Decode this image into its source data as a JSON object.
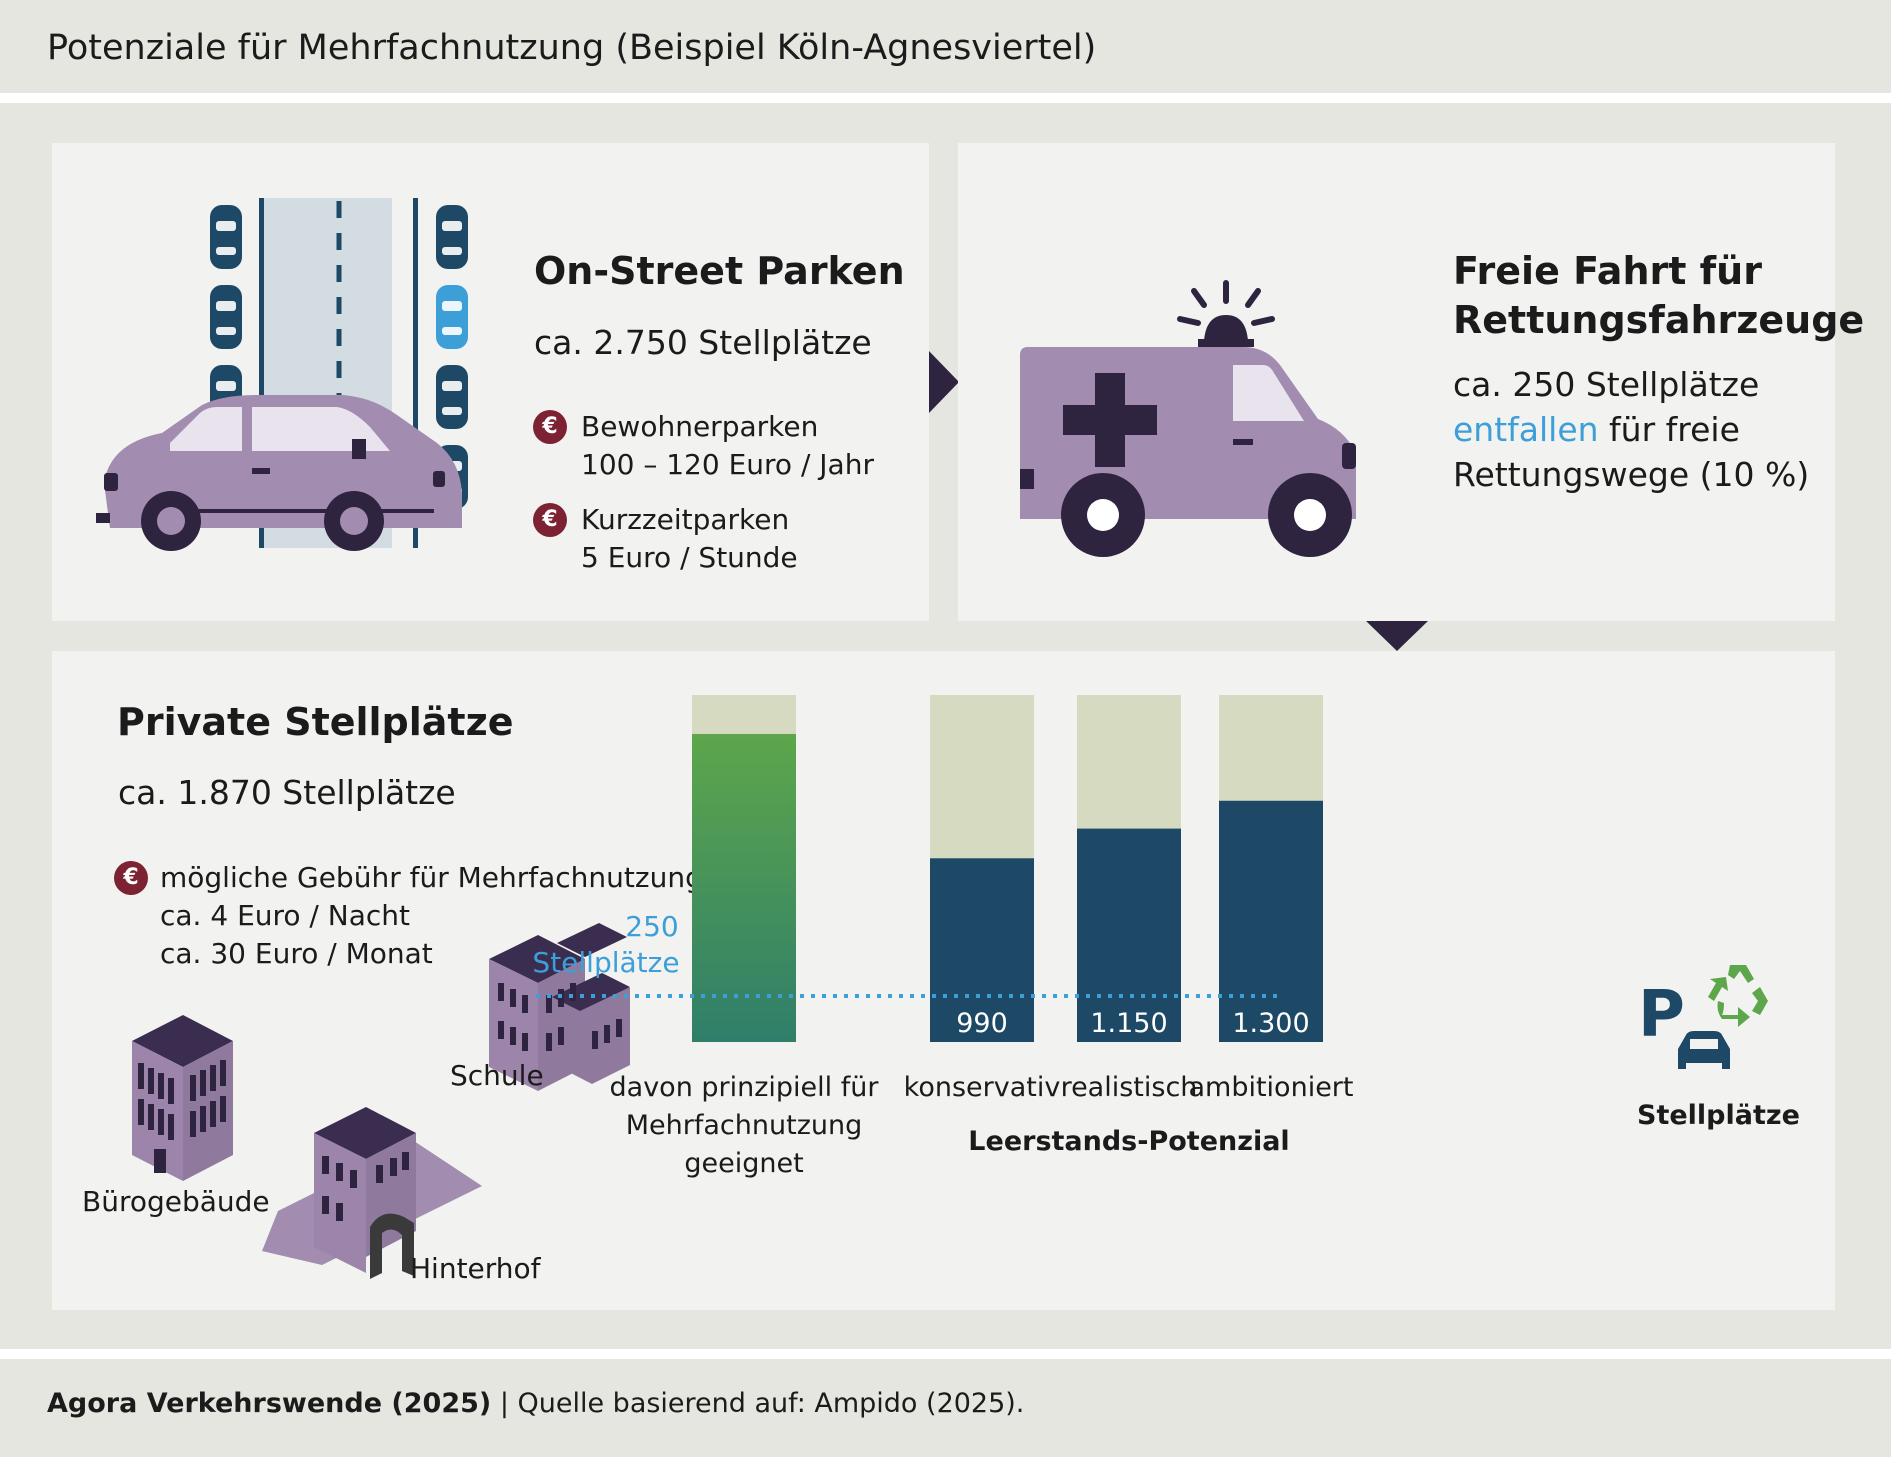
{
  "page_title": "Potenziale für Mehrfachnutzung (Beispiel Köln-Agnesviertel)",
  "onstreet": {
    "heading": "On-Street Parken",
    "count": "ca. 2.750 Stellplätze",
    "fee1_label": "Bewohnerparken",
    "fee1_value": "100 – 120 Euro / Jahr",
    "fee2_label": "Kurzzeitparken",
    "fee2_value": "5 Euro / Stunde"
  },
  "rescue": {
    "heading_line1": "Freie Fahrt für",
    "heading_line2": "Rettungsfahrzeuge",
    "line1": "ca. 250 Stellplätze",
    "line2_accent": "entfallen",
    "line2_rest": " für freie",
    "line3": "Rettungswege (10 %)"
  },
  "private": {
    "heading": "Private Stellplätze",
    "count": "ca. 1.870 Stellplätze",
    "fee_label": "mögliche Gebühr für Mehrfachnutzung",
    "fee_line1": "ca. 4 Euro / Nacht",
    "fee_line2": "ca. 30 Euro / Monat",
    "buildings": {
      "office": "Bürogebäude",
      "school": "Schule",
      "backyard": "Hinterhof"
    }
  },
  "icon_names": [
    "car-icon",
    "ambulance-icon",
    "road-icon",
    "euro-icon",
    "office-building-icon",
    "school-icon",
    "backyard-icon",
    "parking-recycle-icon"
  ],
  "colors": {
    "vehicle_purple": "#a28caf",
    "dark_navy": "#1e4966",
    "bar_background": "#d6dac0",
    "bar_green_top": "#5da64b",
    "bar_green_bottom": "#2f7e6a",
    "accent_blue": "#3d9fd8",
    "euro_badge": "#7c2232"
  },
  "chart_data": {
    "type": "bar",
    "stacked": true,
    "total": 1870,
    "ylim": [
      0,
      1870
    ],
    "categories": [
      "davon prinzipiell für Mehrfachnutzung geeignet",
      "konservativ",
      "realistisch",
      "ambitioniert"
    ],
    "values": [
      1660,
      990,
      1150,
      1300
    ],
    "value_labels": [
      "",
      "990",
      "1.150",
      "1.300"
    ],
    "group_label": "Leerstands-Potenzial",
    "unit_label": "Stellplätze",
    "reference_line": {
      "value": 250,
      "label_line1": "250",
      "label_line2": "Stellplätze"
    },
    "grid": false
  },
  "footer": {
    "source_bold": "Agora Verkehrswende (2025)",
    "source_rest": " | Quelle basierend auf: Ampido (2025)."
  }
}
